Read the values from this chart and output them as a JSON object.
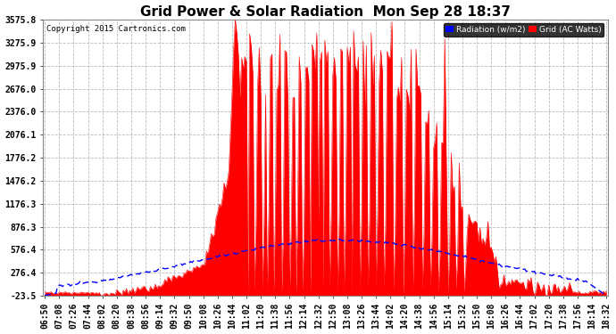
{
  "title": "Grid Power & Solar Radiation  Mon Sep 28 18:37",
  "copyright": "Copyright 2015 Cartronics.com",
  "legend_labels": [
    "Radiation (w/m2)",
    "Grid (AC Watts)"
  ],
  "legend_colors": [
    "blue",
    "red"
  ],
  "ymin": -23.5,
  "ymax": 3575.8,
  "yticks": [
    -23.5,
    276.4,
    576.4,
    876.3,
    1176.3,
    1476.2,
    1776.2,
    2076.1,
    2376.0,
    2676.0,
    2975.9,
    3275.9,
    3575.8
  ],
  "bg_color": "#ffffff",
  "plot_bg_color": "#ffffff",
  "grid_color": "#aaaaaa",
  "solar_color": "red",
  "radiation_color": "blue",
  "title_fontsize": 11,
  "tick_fontsize": 7,
  "xtick_labels": [
    "06:50",
    "07:08",
    "07:26",
    "07:44",
    "08:02",
    "08:20",
    "08:38",
    "08:56",
    "09:14",
    "09:32",
    "09:50",
    "10:08",
    "10:26",
    "10:44",
    "11:02",
    "11:20",
    "11:38",
    "11:56",
    "12:14",
    "12:32",
    "12:50",
    "13:08",
    "13:26",
    "13:44",
    "14:02",
    "14:20",
    "14:38",
    "14:56",
    "15:14",
    "15:32",
    "15:50",
    "16:08",
    "16:26",
    "16:44",
    "17:02",
    "17:20",
    "17:38",
    "17:56",
    "18:14",
    "18:32"
  ]
}
